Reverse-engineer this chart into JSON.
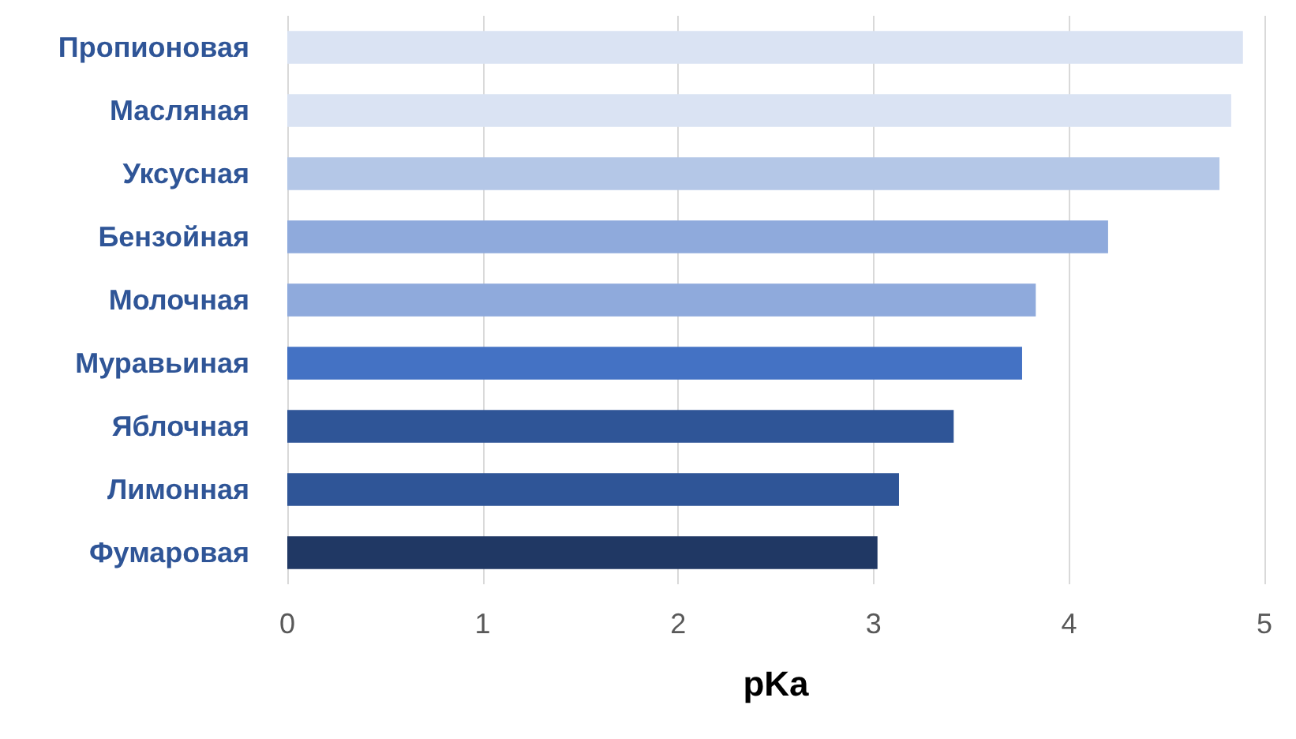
{
  "chart_data": {
    "type": "bar",
    "orientation": "horizontal",
    "xlabel": "pKa",
    "categories": [
      "Пропионовая",
      "Масляная",
      "Уксусная",
      "Бензойная",
      "Молочная",
      "Муравьиная",
      "Яблочная",
      "Лимонная",
      "Фумаровая"
    ],
    "values": [
      4.89,
      4.83,
      4.77,
      4.2,
      3.83,
      3.76,
      3.41,
      3.13,
      3.02
    ],
    "colors": [
      "#dae3f3",
      "#dae3f3",
      "#b4c7e7",
      "#8faadc",
      "#8faadc",
      "#4472c4",
      "#2f5597",
      "#2f5597",
      "#203864"
    ],
    "xlim": [
      0,
      5
    ],
    "xticks": [
      0,
      1,
      2,
      3,
      4,
      5
    ],
    "grid": "x"
  }
}
